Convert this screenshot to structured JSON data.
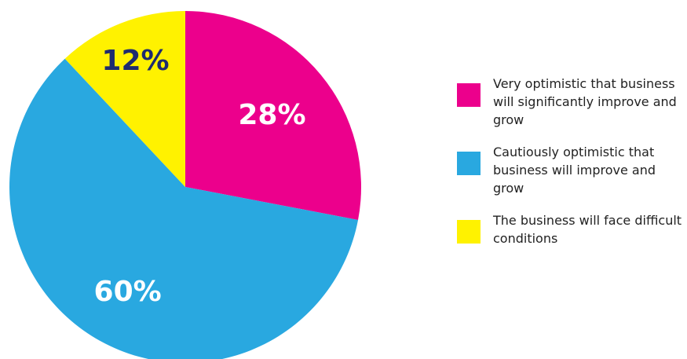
{
  "chart_data": {
    "type": "pie",
    "title": "",
    "slices": [
      {
        "label": "Very optimistic that business will significantly improve and grow",
        "value": 28,
        "display": "28%",
        "color": "#EC008C",
        "label_color": "#FFFFFF"
      },
      {
        "label": "Cautiously optimistic that business will improve and grow",
        "value": 60,
        "display": "60%",
        "color": "#29A8E0",
        "label_color": "#FFFFFF"
      },
      {
        "label": "The business will face difficult conditions",
        "value": 12,
        "display": "12%",
        "color": "#FFF200",
        "label_color": "#1E2B6F"
      }
    ],
    "start_angle_deg": 0,
    "direction": "clockwise",
    "legend_position": "right"
  }
}
